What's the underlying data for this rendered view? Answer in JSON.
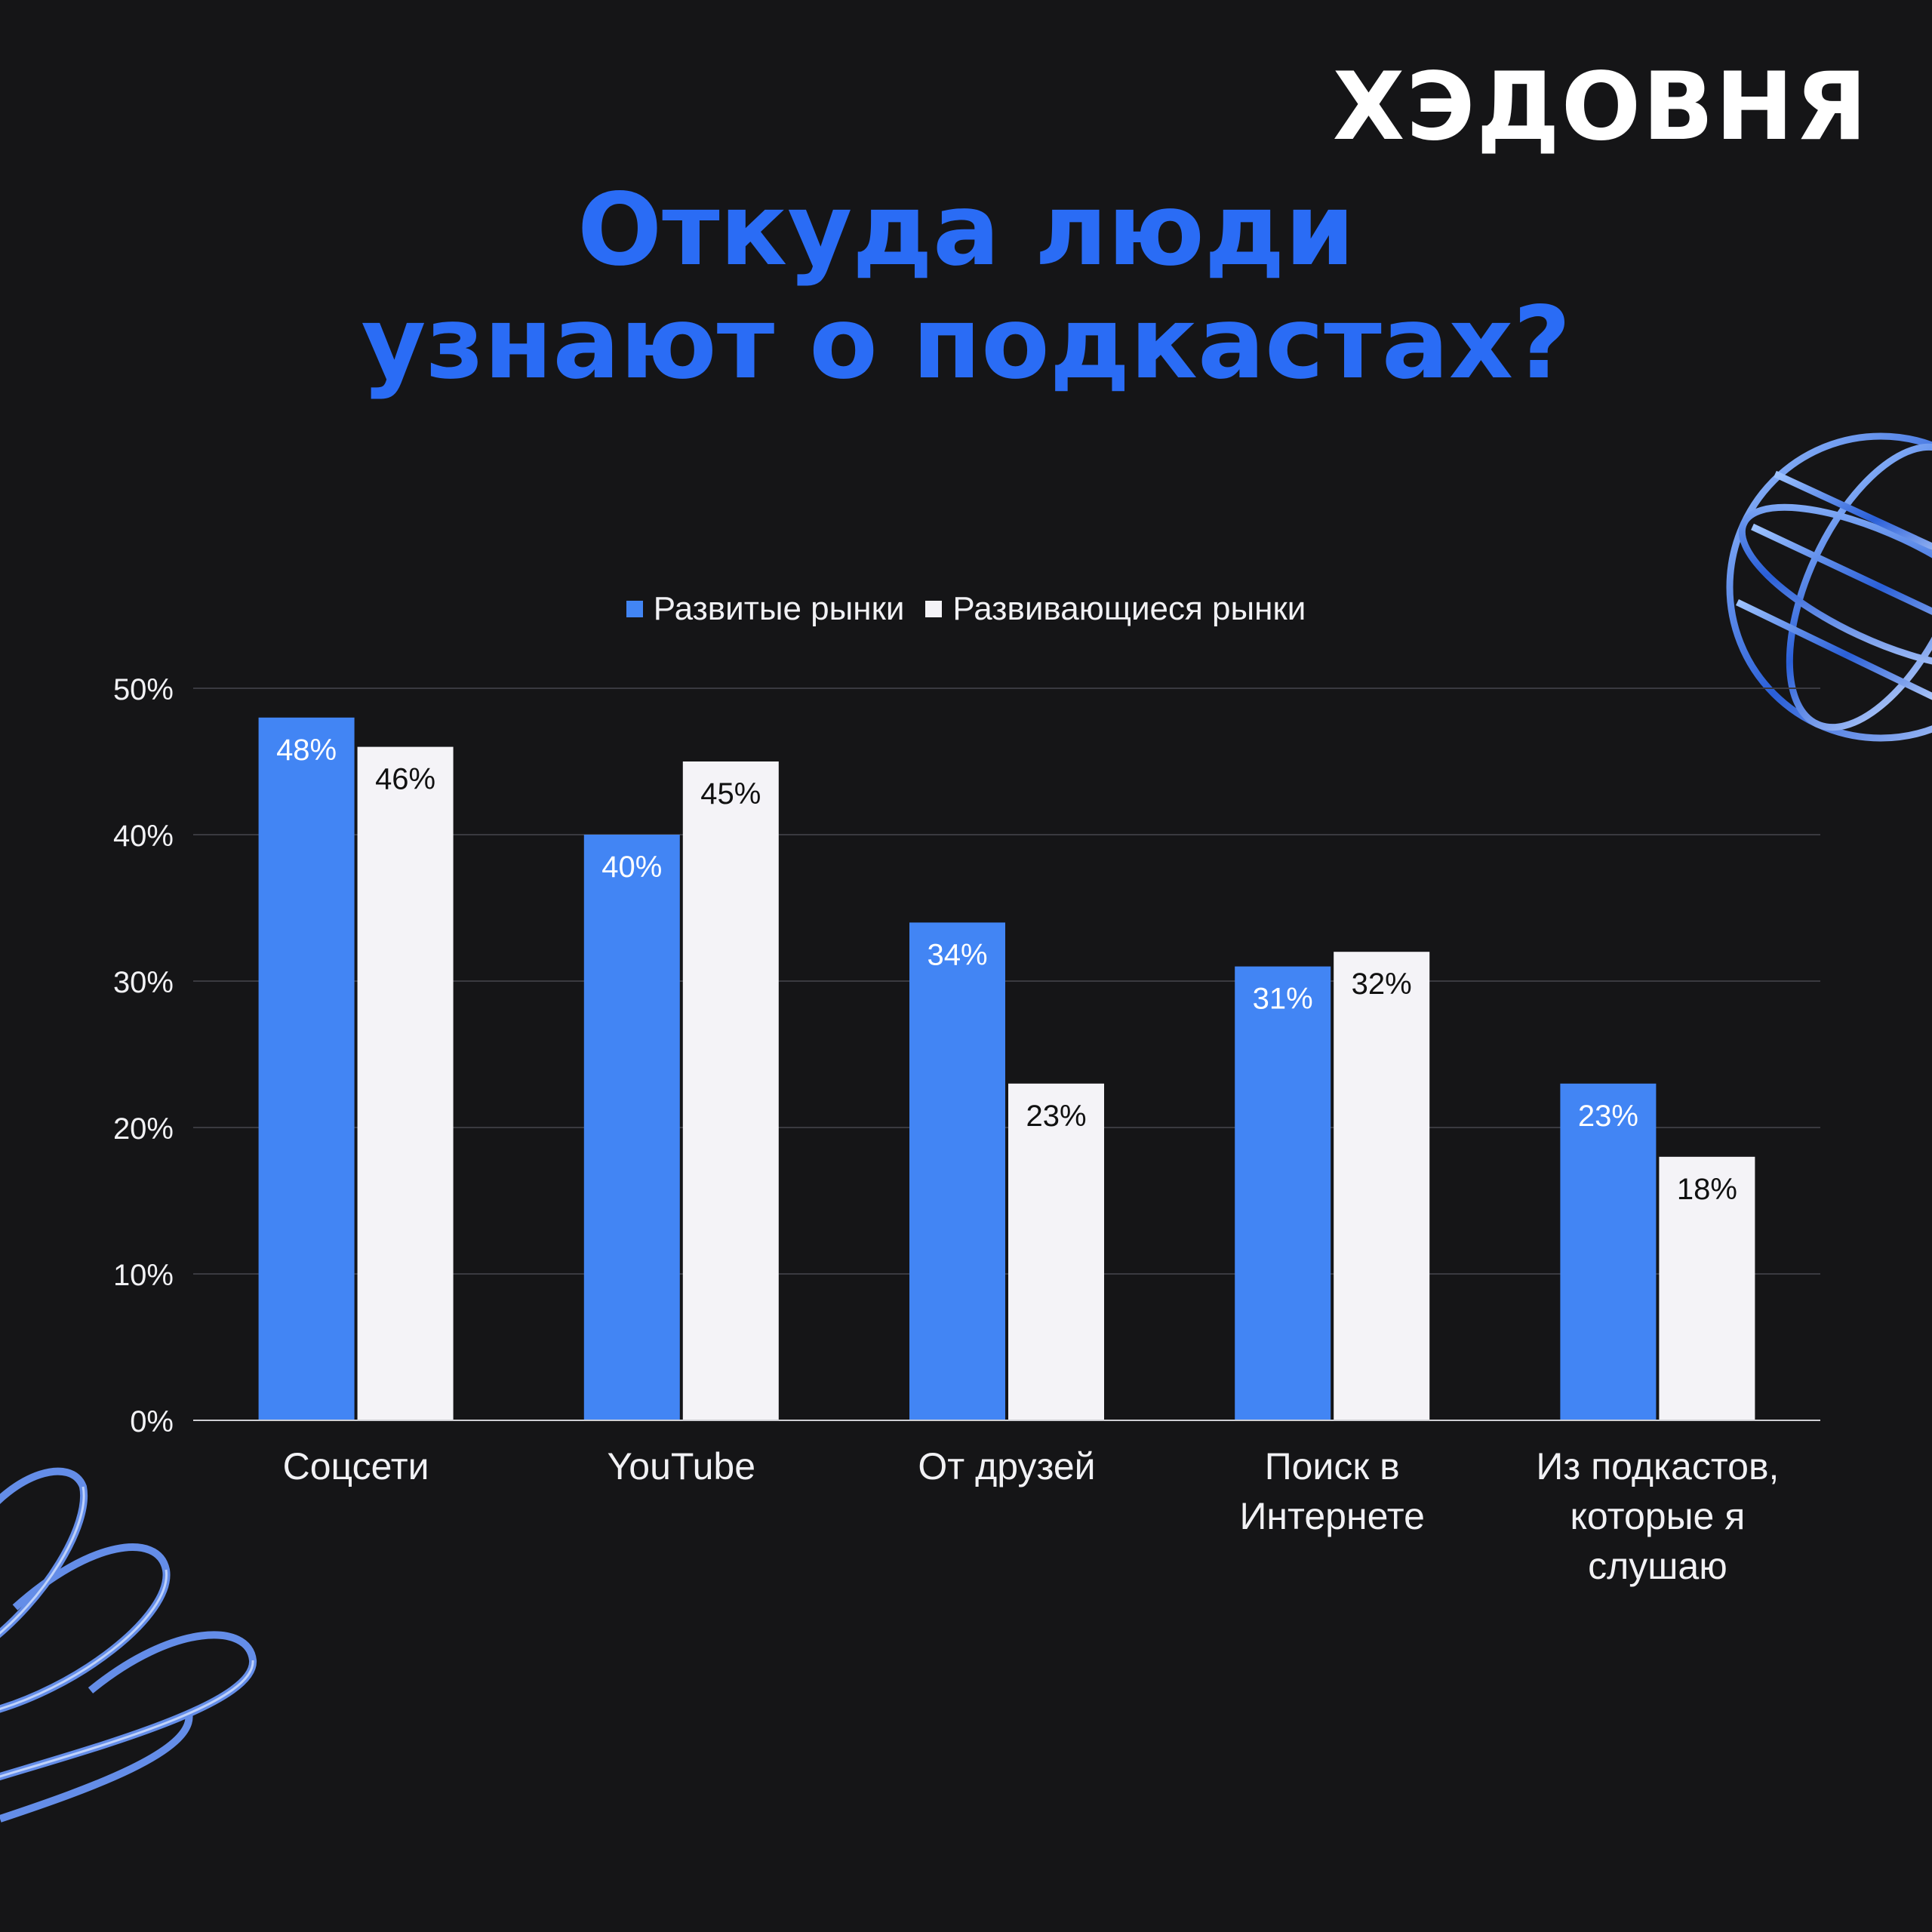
{
  "brand": {
    "logo_text": "ХЭДОВНЯ"
  },
  "colors": {
    "background": "#151517",
    "accent": "#2a6cf5",
    "series_1": "#4285f4",
    "series_2": "#f4f3f7",
    "text": "#f1f1f4",
    "grid": "#3a3a40"
  },
  "decorations": {
    "top_right": "wireframe-globe-icon",
    "bottom_left": "chrome-ribbon-icon"
  },
  "chart_data": {
    "type": "bar",
    "title": [
      "Откуда люди",
      "узнают о подкастах?"
    ],
    "categories": [
      [
        "Соцсети"
      ],
      [
        "YouTube"
      ],
      [
        "От друзей"
      ],
      [
        "Поиск в",
        "Интернете"
      ],
      [
        "Из подкастов,",
        "которые я",
        "слушаю"
      ]
    ],
    "series": [
      {
        "name": "Развитые рынки",
        "values": [
          48,
          40,
          34,
          31,
          23
        ]
      },
      {
        "name": "Развивающиеся рынки",
        "values": [
          46,
          45,
          23,
          32,
          18
        ]
      }
    ],
    "value_labels": [
      [
        "48%",
        "40%",
        "34%",
        "31%",
        "23%"
      ],
      [
        "46%",
        "45%",
        "23%",
        "32%",
        "18%"
      ]
    ],
    "ylim": [
      0,
      50
    ],
    "yticks": [
      0,
      10,
      20,
      30,
      40,
      50
    ],
    "ytick_labels": [
      "0%",
      "10%",
      "20%",
      "30%",
      "40%",
      "50%"
    ],
    "grid": true,
    "legend_position": "top-center"
  }
}
